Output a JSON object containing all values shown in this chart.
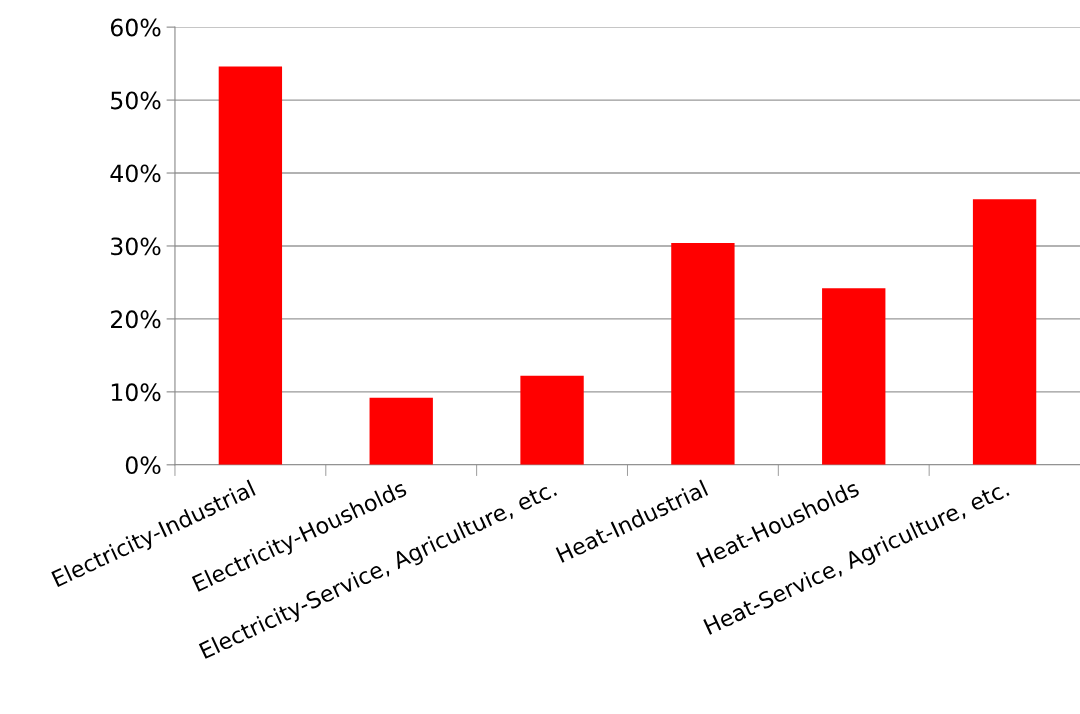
{
  "chart_data": {
    "type": "bar",
    "categories": [
      "Electricity-Industrial",
      "Electricity-Housholds",
      "Electricity-Service, Agriculture, etc.",
      "Heat-Industrial",
      "Heat-Housholds",
      "Heat-Service, Agriculture, etc."
    ],
    "values": [
      54.6,
      9.2,
      12.2,
      30.4,
      24.2,
      36.4
    ],
    "color": "#ff0000",
    "ylim": [
      0,
      60
    ],
    "yticks": [
      {
        "value": 0,
        "label": "0%"
      },
      {
        "value": 10,
        "label": "10%"
      },
      {
        "value": 20,
        "label": "20%"
      },
      {
        "value": 30,
        "label": "30%"
      },
      {
        "value": 40,
        "label": "40%"
      },
      {
        "value": 50,
        "label": "50%"
      },
      {
        "value": 60,
        "label": "60%"
      }
    ],
    "grid": "y",
    "legend": false
  }
}
